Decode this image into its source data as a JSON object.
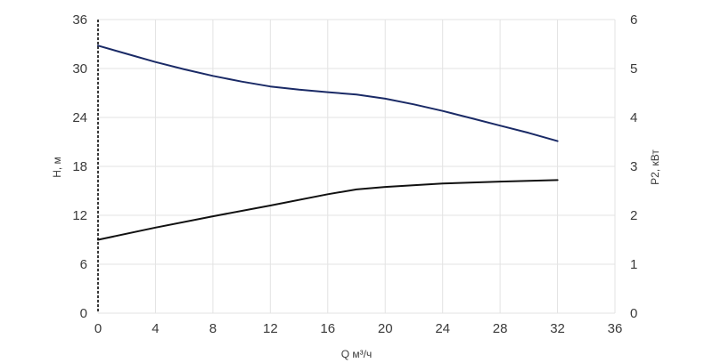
{
  "chart_data": {
    "type": "line",
    "xlabel": "Q м³/ч",
    "ylabel_left": "H, м",
    "ylabel_right": "P2, кВт",
    "xlim": [
      0,
      36
    ],
    "ylim_left": [
      0,
      36
    ],
    "ylim_right": [
      0,
      6
    ],
    "x_ticks": [
      "0",
      "4",
      "8",
      "12",
      "16",
      "20",
      "24",
      "28",
      "32",
      "36"
    ],
    "y_left_ticks": [
      "0",
      "6",
      "12",
      "18",
      "24",
      "30",
      "36"
    ],
    "y_right_ticks": [
      "0",
      "1",
      "2",
      "3",
      "4",
      "5",
      "6"
    ],
    "grid": true,
    "series": [
      {
        "axis": "left",
        "color": "#1a2a66",
        "x": [
          0,
          2,
          4,
          6,
          8,
          10,
          12,
          14,
          16,
          18,
          20,
          22,
          24,
          26,
          28,
          30,
          32
        ],
        "y": [
          32.8,
          31.8,
          30.8,
          29.9,
          29.1,
          28.4,
          27.8,
          27.4,
          27.1,
          26.8,
          26.3,
          25.6,
          24.8,
          23.9,
          23.0,
          22.1,
          21.1
        ]
      },
      {
        "axis": "right",
        "color": "#111111",
        "x": [
          0,
          4,
          8,
          12,
          16,
          18,
          20,
          24,
          28,
          32
        ],
        "y": [
          1.5,
          1.75,
          1.98,
          2.2,
          2.43,
          2.53,
          2.58,
          2.65,
          2.69,
          2.72
        ]
      }
    ]
  }
}
